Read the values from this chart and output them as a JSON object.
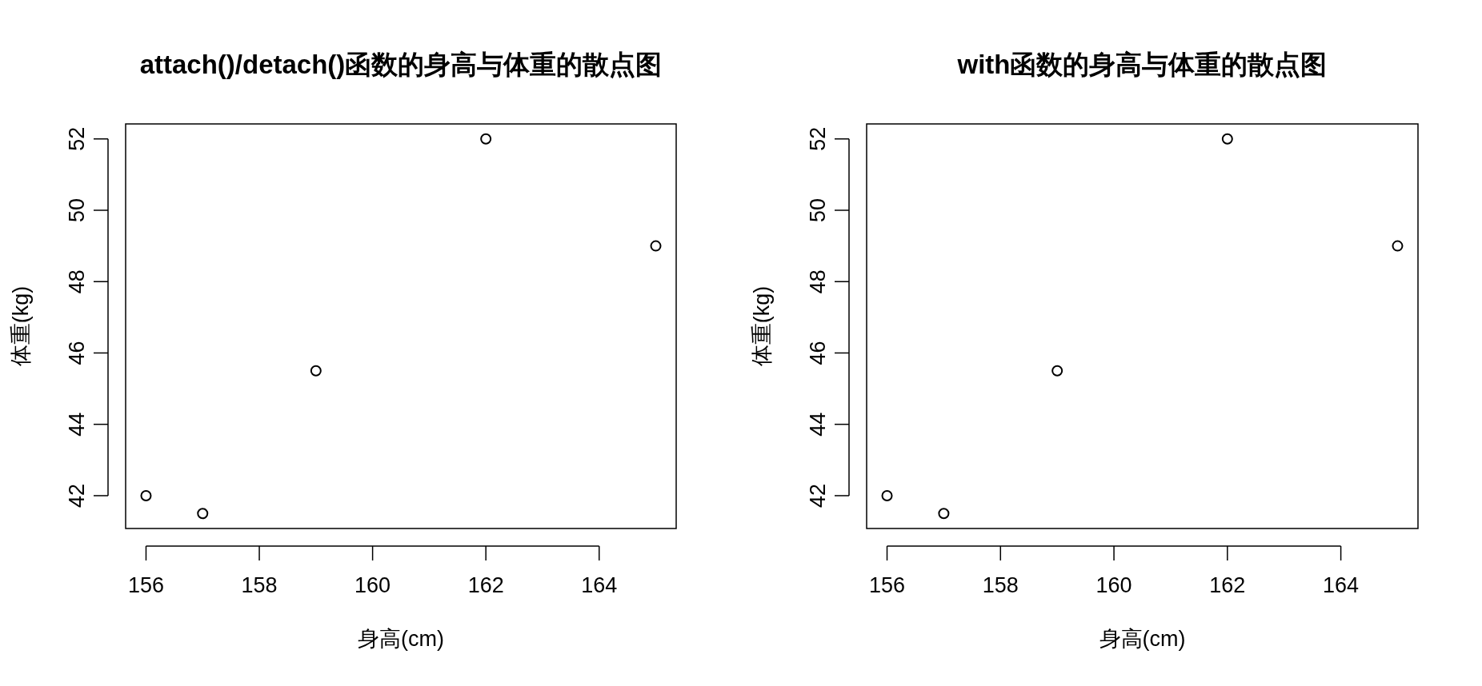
{
  "chart_data": [
    {
      "type": "scatter",
      "title": "attach()/detach()函数的身高与体重的散点图",
      "xlabel": "身高(cm)",
      "ylabel": "体重(kg)",
      "x": [
        156,
        157,
        159,
        162,
        165
      ],
      "values": [
        42,
        41.5,
        45.5,
        52,
        49
      ],
      "xlim": [
        155.64,
        165.36
      ],
      "ylim": [
        41.08,
        52.42
      ],
      "xticks": [
        156,
        158,
        160,
        162,
        164
      ],
      "yticks": [
        42,
        44,
        46,
        48,
        50,
        52
      ],
      "marker": "circle",
      "color": "#000000"
    },
    {
      "type": "scatter",
      "title": "with函数的身高与体重的散点图",
      "xlabel": "身高(cm)",
      "ylabel": "体重(kg)",
      "x": [
        156,
        157,
        159,
        162,
        165
      ],
      "values": [
        42,
        41.5,
        45.5,
        52,
        49
      ],
      "xlim": [
        155.64,
        165.36
      ],
      "ylim": [
        41.08,
        52.42
      ],
      "xticks": [
        156,
        158,
        160,
        162,
        164
      ],
      "yticks": [
        42,
        44,
        46,
        48,
        50,
        52
      ],
      "marker": "circle",
      "color": "#000000"
    }
  ]
}
